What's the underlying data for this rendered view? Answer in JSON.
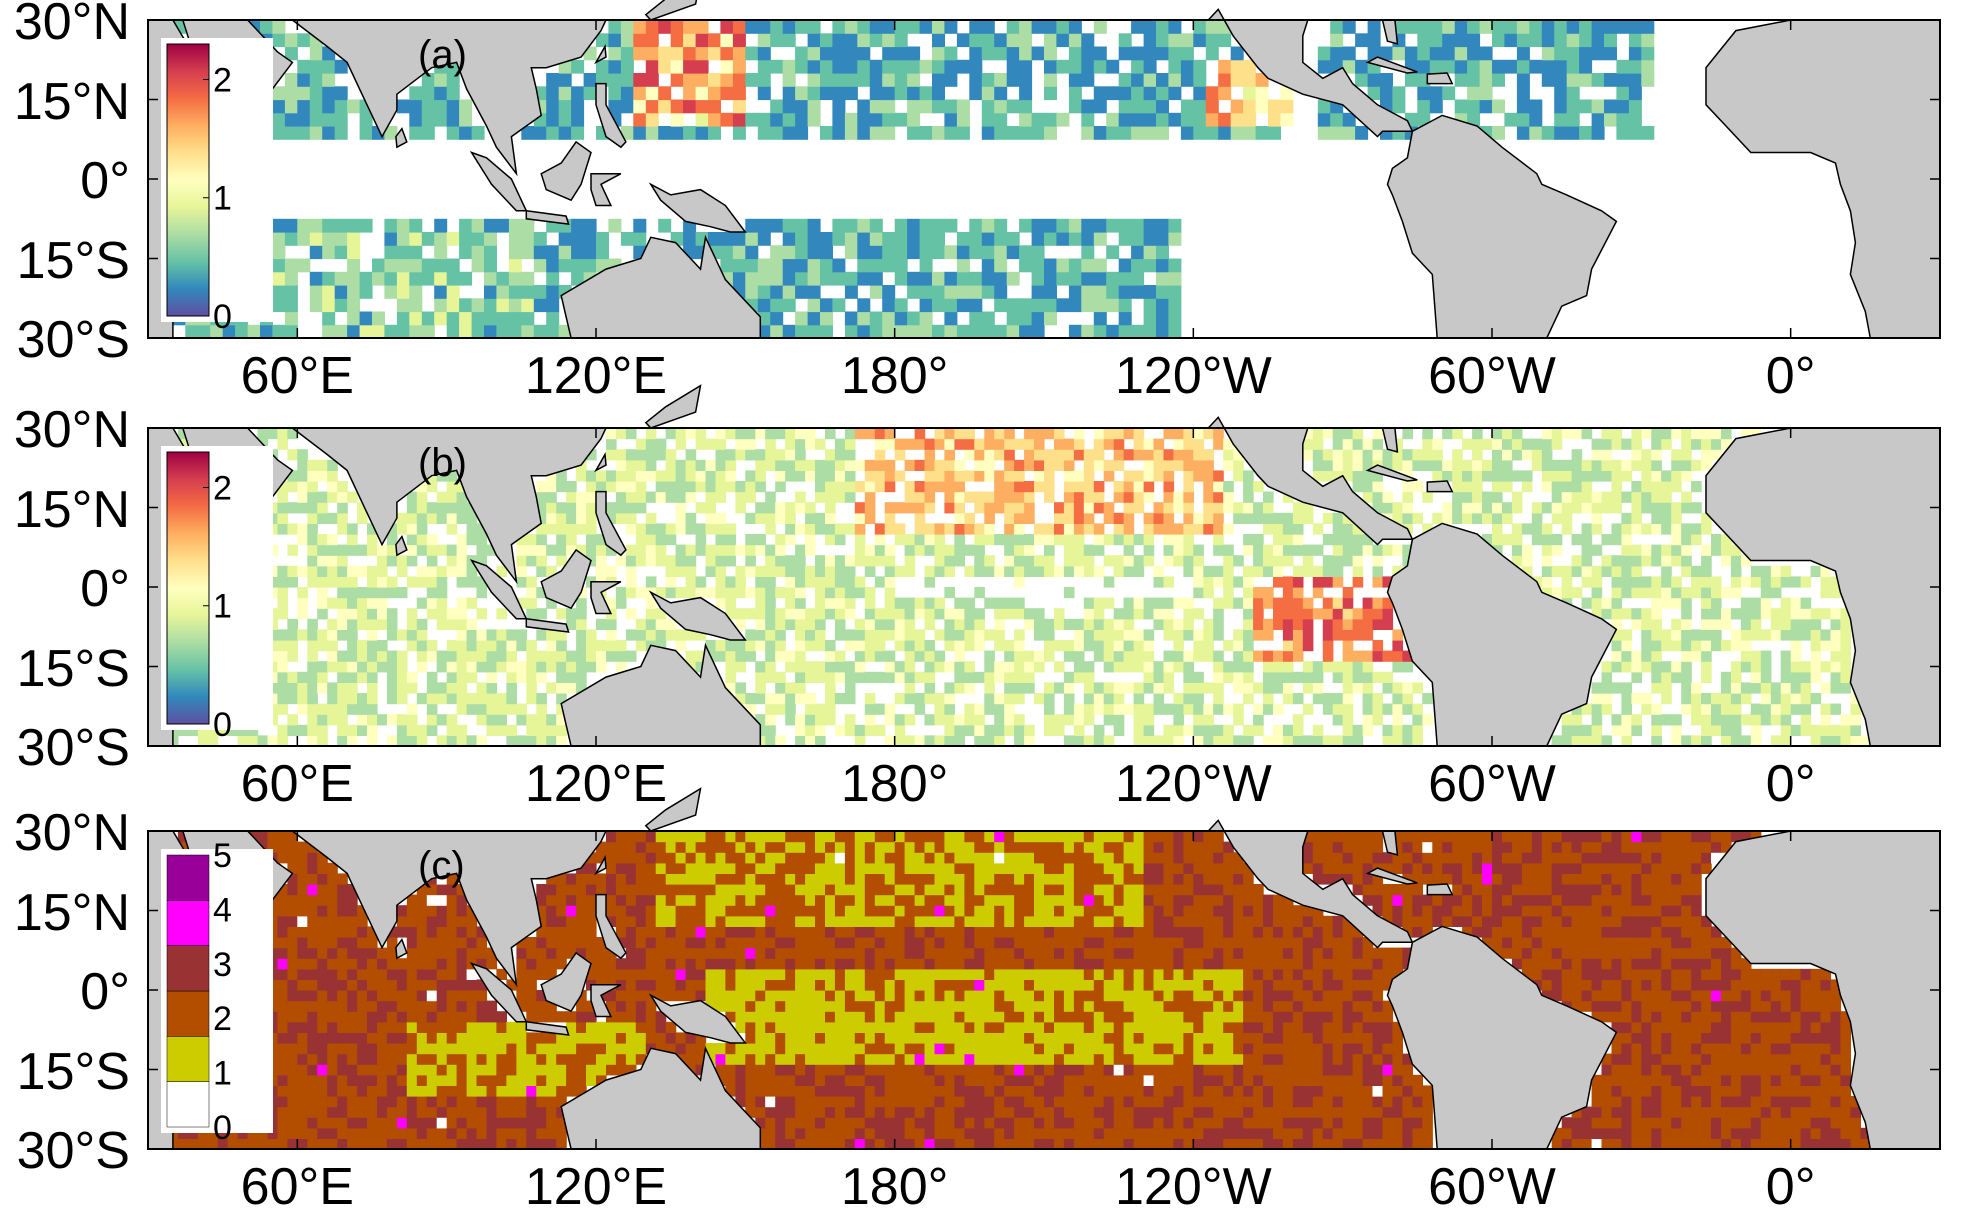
{
  "panels": [
    {
      "label": "(a)",
      "colorbar": {
        "type": "continuous",
        "ticks": [
          "2",
          "1",
          "0"
        ],
        "colors": [
          "#5e4fa2",
          "#3288bd",
          "#66c2a5",
          "#abdda4",
          "#e6f598",
          "#ffffbf",
          "#fee08b",
          "#fdae61",
          "#f46d43",
          "#d53e4f",
          "#9e0142"
        ]
      }
    },
    {
      "label": "(b)",
      "colorbar": {
        "type": "continuous",
        "ticks": [
          "2",
          "1",
          "0"
        ],
        "colors": [
          "#5e4fa2",
          "#3288bd",
          "#66c2a5",
          "#abdda4",
          "#e6f598",
          "#ffffbf",
          "#fee08b",
          "#fdae61",
          "#f46d43",
          "#d53e4f",
          "#9e0142"
        ]
      }
    },
    {
      "label": "(c)",
      "colorbar": {
        "type": "categorical",
        "ticks": [
          "5",
          "4",
          "3",
          "2",
          "1",
          "0"
        ],
        "colors": [
          "#ffffff",
          "#cccc00",
          "#b34d00",
          "#993333",
          "#ff00ff",
          "#990099"
        ]
      }
    }
  ],
  "axes": {
    "y_ticks": [
      "30°N",
      "15°N",
      "0°",
      "15°S",
      "30°S"
    ],
    "x_ticks": [
      "60°E",
      "120°E",
      "180°",
      "120°W",
      "60°W",
      "0°"
    ]
  },
  "colors": {
    "land": "#c8c8c8",
    "coast": "#000000",
    "frame": "#000000"
  }
}
